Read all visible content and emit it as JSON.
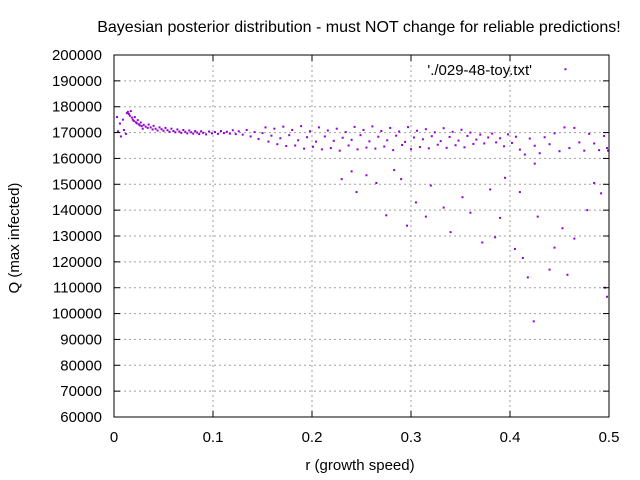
{
  "chart_data": {
    "type": "scatter",
    "title": "Bayesian posterior distribution - must NOT change for reliable predictions!",
    "xlabel": "r (growth speed)",
    "ylabel": "Q (max infected)",
    "xlim": [
      0,
      0.5
    ],
    "ylim": [
      60000,
      200000
    ],
    "xticks": [
      0,
      0.1,
      0.2,
      0.3,
      0.4,
      0.5
    ],
    "xtick_labels": [
      "0",
      "0.1",
      "0.2",
      "0.3",
      "0.4",
      "0.5"
    ],
    "yticks": [
      60000,
      70000,
      80000,
      90000,
      100000,
      110000,
      120000,
      130000,
      140000,
      150000,
      160000,
      170000,
      180000,
      190000,
      200000
    ],
    "ytick_labels": [
      "60000",
      "70000",
      "80000",
      "90000",
      "100000",
      "110000",
      "120000",
      "130000",
      "140000",
      "150000",
      "160000",
      "170000",
      "180000",
      "190000",
      "200000"
    ],
    "grid": true,
    "legend": {
      "placement": "top-right",
      "entries": [
        "'./029-48-toy.txt'"
      ]
    },
    "point_color": "#9400d3",
    "series": [
      {
        "name": "'./029-48-toy.txt'",
        "points": [
          [
            0.003,
            176000
          ],
          [
            0.004,
            170500
          ],
          [
            0.006,
            173500
          ],
          [
            0.007,
            168500
          ],
          [
            0.009,
            175000
          ],
          [
            0.01,
            171000
          ],
          [
            0.012,
            169500
          ],
          [
            0.013,
            177500
          ],
          [
            0.014,
            178000
          ],
          [
            0.015,
            177200
          ],
          [
            0.016,
            176500
          ],
          [
            0.017,
            178300
          ],
          [
            0.018,
            175800
          ],
          [
            0.019,
            175000
          ],
          [
            0.02,
            174500
          ],
          [
            0.021,
            176000
          ],
          [
            0.022,
            174000
          ],
          [
            0.023,
            173600
          ],
          [
            0.024,
            174800
          ],
          [
            0.025,
            173200
          ],
          [
            0.026,
            172800
          ],
          [
            0.027,
            173900
          ],
          [
            0.028,
            172500
          ],
          [
            0.029,
            171500
          ],
          [
            0.03,
            173000
          ],
          [
            0.032,
            172300
          ],
          [
            0.034,
            171800
          ],
          [
            0.035,
            173100
          ],
          [
            0.037,
            172000
          ],
          [
            0.039,
            171200
          ],
          [
            0.04,
            172600
          ],
          [
            0.042,
            171500
          ],
          [
            0.044,
            170800
          ],
          [
            0.046,
            172000
          ],
          [
            0.048,
            171300
          ],
          [
            0.05,
            170700
          ],
          [
            0.052,
            171800
          ],
          [
            0.054,
            170900
          ],
          [
            0.056,
            170300
          ],
          [
            0.058,
            171500
          ],
          [
            0.06,
            170600
          ],
          [
            0.062,
            170100
          ],
          [
            0.064,
            171200
          ],
          [
            0.066,
            170400
          ],
          [
            0.068,
            169900
          ],
          [
            0.07,
            171000
          ],
          [
            0.072,
            170300
          ],
          [
            0.074,
            169700
          ],
          [
            0.076,
            170800
          ],
          [
            0.078,
            170100
          ],
          [
            0.08,
            169600
          ],
          [
            0.082,
            170600
          ],
          [
            0.084,
            170000
          ],
          [
            0.086,
            169400
          ],
          [
            0.088,
            170500
          ],
          [
            0.09,
            169900
          ],
          [
            0.093,
            169300
          ],
          [
            0.096,
            170400
          ],
          [
            0.099,
            169700
          ],
          [
            0.102,
            170200
          ],
          [
            0.105,
            169500
          ],
          [
            0.108,
            170600
          ],
          [
            0.111,
            169800
          ],
          [
            0.114,
            170300
          ],
          [
            0.117,
            169600
          ],
          [
            0.12,
            170900
          ],
          [
            0.123,
            169400
          ],
          [
            0.126,
            170500
          ],
          [
            0.13,
            169200
          ],
          [
            0.134,
            171000
          ],
          [
            0.138,
            168500
          ],
          [
            0.142,
            170200
          ],
          [
            0.146,
            167500
          ],
          [
            0.15,
            169800
          ],
          [
            0.153,
            172000
          ],
          [
            0.156,
            166500
          ],
          [
            0.159,
            168800
          ],
          [
            0.162,
            171500
          ],
          [
            0.165,
            165500
          ],
          [
            0.168,
            167800
          ],
          [
            0.171,
            172300
          ],
          [
            0.174,
            164800
          ],
          [
            0.177,
            169000
          ],
          [
            0.18,
            171000
          ],
          [
            0.183,
            165000
          ],
          [
            0.186,
            167000
          ],
          [
            0.189,
            172500
          ],
          [
            0.192,
            163800
          ],
          [
            0.195,
            168200
          ],
          [
            0.198,
            170500
          ],
          [
            0.201,
            164500
          ],
          [
            0.204,
            166500
          ],
          [
            0.207,
            172000
          ],
          [
            0.21,
            163500
          ],
          [
            0.213,
            168500
          ],
          [
            0.216,
            170800
          ],
          [
            0.219,
            164000
          ],
          [
            0.222,
            166800
          ],
          [
            0.225,
            171500
          ],
          [
            0.228,
            163000
          ],
          [
            0.231,
            168000
          ],
          [
            0.234,
            170200
          ],
          [
            0.237,
            165000
          ],
          [
            0.24,
            167200
          ],
          [
            0.243,
            172200
          ],
          [
            0.246,
            163500
          ],
          [
            0.249,
            169000
          ],
          [
            0.252,
            171000
          ],
          [
            0.255,
            164200
          ],
          [
            0.258,
            166600
          ],
          [
            0.261,
            172400
          ],
          [
            0.264,
            163800
          ],
          [
            0.267,
            168400
          ],
          [
            0.27,
            170600
          ],
          [
            0.273,
            164600
          ],
          [
            0.276,
            167000
          ],
          [
            0.279,
            171800
          ],
          [
            0.282,
            163200
          ],
          [
            0.285,
            168800
          ],
          [
            0.288,
            170400
          ],
          [
            0.291,
            165200
          ],
          [
            0.294,
            166400
          ],
          [
            0.297,
            172100
          ],
          [
            0.3,
            163600
          ],
          [
            0.303,
            168100
          ],
          [
            0.306,
            170700
          ],
          [
            0.309,
            164400
          ],
          [
            0.312,
            167400
          ],
          [
            0.315,
            171300
          ],
          [
            0.318,
            163900
          ],
          [
            0.321,
            168600
          ],
          [
            0.324,
            170100
          ],
          [
            0.327,
            165300
          ],
          [
            0.33,
            166700
          ],
          [
            0.333,
            171700
          ],
          [
            0.336,
            164100
          ],
          [
            0.339,
            168300
          ],
          [
            0.342,
            170300
          ],
          [
            0.345,
            165100
          ],
          [
            0.348,
            166900
          ],
          [
            0.351,
            171100
          ],
          [
            0.354,
            164300
          ],
          [
            0.357,
            168700
          ],
          [
            0.36,
            170000
          ],
          [
            0.363,
            165600
          ],
          [
            0.366,
            167300
          ],
          [
            0.37,
            169200
          ],
          [
            0.374,
            165800
          ],
          [
            0.378,
            168100
          ],
          [
            0.382,
            169600
          ],
          [
            0.386,
            166200
          ],
          [
            0.39,
            167800
          ],
          [
            0.394,
            164700
          ],
          [
            0.398,
            169300
          ],
          [
            0.402,
            166000
          ],
          [
            0.406,
            168400
          ],
          [
            0.41,
            163400
          ],
          [
            0.415,
            161500
          ],
          [
            0.42,
            167700
          ],
          [
            0.425,
            164900
          ],
          [
            0.43,
            162000
          ],
          [
            0.435,
            168200
          ],
          [
            0.44,
            165500
          ],
          [
            0.445,
            169700
          ],
          [
            0.45,
            162800
          ],
          [
            0.455,
            172000
          ],
          [
            0.46,
            164000
          ],
          [
            0.465,
            171800
          ],
          [
            0.47,
            166200
          ],
          [
            0.475,
            163000
          ],
          [
            0.48,
            169500
          ],
          [
            0.485,
            165800
          ],
          [
            0.49,
            163200
          ],
          [
            0.495,
            168700
          ],
          [
            0.498,
            164000
          ],
          [
            0.23,
            152000
          ],
          [
            0.24,
            155000
          ],
          [
            0.245,
            147000
          ],
          [
            0.255,
            153500
          ],
          [
            0.265,
            150500
          ],
          [
            0.275,
            138000
          ],
          [
            0.283,
            155500
          ],
          [
            0.29,
            152000
          ],
          [
            0.296,
            134000
          ],
          [
            0.305,
            143000
          ],
          [
            0.315,
            137500
          ],
          [
            0.32,
            149500
          ],
          [
            0.333,
            141000
          ],
          [
            0.34,
            131500
          ],
          [
            0.352,
            145000
          ],
          [
            0.36,
            139000
          ],
          [
            0.372,
            127500
          ],
          [
            0.38,
            148000
          ],
          [
            0.385,
            129500
          ],
          [
            0.39,
            137000
          ],
          [
            0.395,
            152500
          ],
          [
            0.405,
            125000
          ],
          [
            0.41,
            147000
          ],
          [
            0.413,
            121500
          ],
          [
            0.418,
            114000
          ],
          [
            0.425,
            158000
          ],
          [
            0.428,
            137500
          ],
          [
            0.44,
            117000
          ],
          [
            0.445,
            125500
          ],
          [
            0.453,
            133000
          ],
          [
            0.456,
            194500
          ],
          [
            0.458,
            115000
          ],
          [
            0.465,
            129000
          ],
          [
            0.478,
            140000
          ],
          [
            0.485,
            150500
          ],
          [
            0.492,
            146500
          ],
          [
            0.496,
            110000
          ],
          [
            0.498,
            106500
          ],
          [
            0.424,
            97000
          ],
          [
            0.499,
            163000
          ]
        ]
      }
    ]
  }
}
